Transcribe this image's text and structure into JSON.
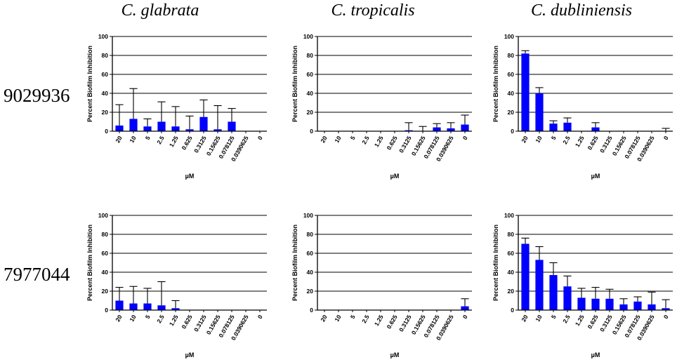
{
  "column_titles": [
    "C. glabrata",
    "C. tropicalis",
    "C. dubliniensis"
  ],
  "row_labels": [
    "9029936",
    "7977044"
  ],
  "colors": {
    "bar": "#0000ff",
    "axis": "#000000",
    "grid": "#000000"
  },
  "chart_data": [
    {
      "type": "bar",
      "row": 0,
      "col": 0,
      "ylabel": "Percent Biofilm Inhibition",
      "xlabel": "µM",
      "ylim": [
        0,
        100
      ],
      "yticks": [
        "0",
        "20",
        "40",
        "60",
        "80",
        "100"
      ],
      "categories": [
        "20",
        "10",
        "5",
        "2.5",
        "1.25",
        "0.625",
        "0.3125",
        "0.15625",
        "0.078125",
        "0.0390625",
        "0"
      ],
      "values": [
        6,
        13,
        5,
        10,
        5,
        2,
        15,
        2,
        10,
        0,
        0
      ],
      "errors": [
        22,
        32,
        8,
        21,
        21,
        14,
        18,
        25,
        14,
        0,
        0
      ]
    },
    {
      "type": "bar",
      "row": 0,
      "col": 1,
      "ylabel": "Percent Biofilm Inhibition",
      "xlabel": "µM",
      "ylim": [
        0,
        100
      ],
      "yticks": [
        "0",
        "20",
        "40",
        "60",
        "80",
        "100"
      ],
      "categories": [
        "20",
        "10",
        "5",
        "2.5",
        "1.25",
        "0.625",
        "0.3125",
        "0.15625",
        "0.078125",
        "0.0390625",
        "0"
      ],
      "values": [
        0,
        0,
        0,
        0,
        0,
        0,
        1,
        0,
        4,
        3,
        7
      ],
      "errors": [
        0,
        0,
        0,
        0,
        0,
        0,
        8,
        5,
        4,
        6,
        10
      ]
    },
    {
      "type": "bar",
      "row": 0,
      "col": 2,
      "ylabel": "Percent Biofilm Inhibition",
      "xlabel": "µM",
      "ylim": [
        0,
        100
      ],
      "yticks": [
        "0",
        "20",
        "40",
        "60",
        "80",
        "100"
      ],
      "categories": [
        "20",
        "10",
        "5",
        "2.5",
        "1.25",
        "0.625",
        "0.3125",
        "0.15625",
        "0.078125",
        "0.0390625",
        "0"
      ],
      "values": [
        82,
        40,
        8,
        9,
        0,
        4,
        0,
        0,
        0,
        0,
        0
      ],
      "errors": [
        3,
        6,
        3,
        5,
        0,
        5,
        0,
        0,
        0,
        0,
        3
      ]
    },
    {
      "type": "bar",
      "row": 1,
      "col": 0,
      "ylabel": "Percent Biofilm Inhibition",
      "xlabel": "µM",
      "ylim": [
        0,
        100
      ],
      "yticks": [
        "0",
        "20",
        "40",
        "60",
        "80",
        "100"
      ],
      "categories": [
        "20",
        "10",
        "5",
        "2.5",
        "1.25",
        "0.625",
        "0.3125",
        "0.15625",
        "0.078125",
        "0.0390625",
        "0"
      ],
      "values": [
        10,
        7,
        7,
        5,
        2,
        0,
        0,
        0,
        0,
        0,
        0
      ],
      "errors": [
        14,
        18,
        16,
        25,
        8,
        0,
        0,
        0,
        0,
        0,
        0
      ]
    },
    {
      "type": "bar",
      "row": 1,
      "col": 1,
      "ylabel": "Percent Biofilm Inhibition",
      "xlabel": "µM",
      "ylim": [
        0,
        100
      ],
      "yticks": [
        "0",
        "20",
        "40",
        "60",
        "80",
        "100"
      ],
      "categories": [
        "20",
        "10",
        "5",
        "2.5",
        "1.25",
        "0.625",
        "0.3125",
        "0.15625",
        "0.078125",
        "0.0390625",
        "0"
      ],
      "values": [
        0,
        0,
        0,
        0,
        0,
        0,
        0,
        0,
        0,
        0,
        4
      ],
      "errors": [
        0,
        0,
        0,
        0,
        0,
        0,
        0,
        0,
        0,
        0,
        8
      ]
    },
    {
      "type": "bar",
      "row": 1,
      "col": 2,
      "ylabel": "Percent Biofilm Inhibition",
      "xlabel": "µM",
      "ylim": [
        0,
        100
      ],
      "yticks": [
        "0",
        "20",
        "40",
        "60",
        "80",
        "100"
      ],
      "categories": [
        "20",
        "10",
        "5",
        "2.5",
        "1.25",
        "0.625",
        "0.3125",
        "0.15625",
        "0.078125",
        "0.0390625",
        "0"
      ],
      "values": [
        70,
        53,
        37,
        25,
        13,
        12,
        12,
        6,
        9,
        6,
        2
      ],
      "errors": [
        6,
        14,
        13,
        11,
        10,
        12,
        10,
        6,
        5,
        13,
        9
      ]
    }
  ]
}
